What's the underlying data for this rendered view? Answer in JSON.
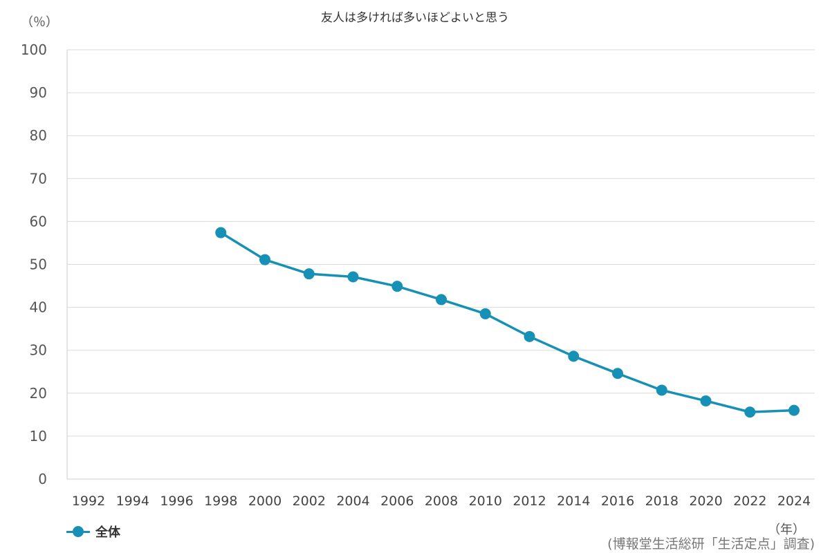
{
  "chart_data": {
    "type": "line",
    "title": "友人は多ければ多いほどよいと思う",
    "ylabel": "（％）",
    "xlabel": "（年）",
    "source": "(博報堂生活総研「生活定点」調査)",
    "x_ticks": [
      "1992",
      "1994",
      "1996",
      "1998",
      "2000",
      "2002",
      "2004",
      "2006",
      "2008",
      "2010",
      "2012",
      "2014",
      "2016",
      "2018",
      "2020",
      "2022",
      "2024"
    ],
    "y_ticks": [
      "0",
      "10",
      "20",
      "30",
      "40",
      "50",
      "60",
      "70",
      "80",
      "90",
      "100"
    ],
    "ylim": [
      0,
      100
    ],
    "xlim": [
      1992,
      2024
    ],
    "grid": true,
    "legend_position": "bottom-left",
    "series": [
      {
        "name": "全体",
        "color": "#1691b5",
        "x": [
          1998,
          2000,
          2002,
          2004,
          2006,
          2008,
          2010,
          2012,
          2014,
          2016,
          2018,
          2020,
          2022,
          2024
        ],
        "values": [
          57.4,
          51.1,
          47.8,
          47.1,
          44.9,
          41.8,
          38.5,
          33.2,
          28.6,
          24.6,
          20.7,
          18.2,
          15.6,
          16.0
        ]
      }
    ]
  }
}
